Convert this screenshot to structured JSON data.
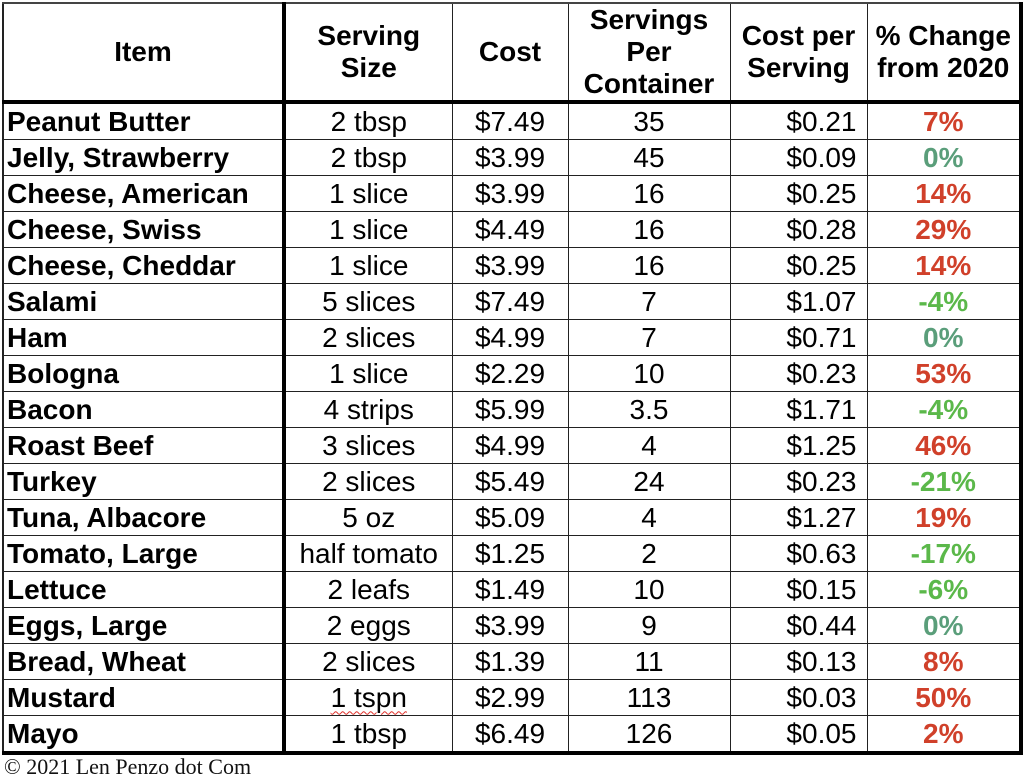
{
  "colors": {
    "increase": "#d0402a",
    "decrease": "#5bb84a",
    "no_change": "#5a9e7a"
  },
  "table": {
    "headers": [
      "Item",
      "Serving Size",
      "Cost",
      "Servings Per Container",
      "Cost per Serving",
      "% Change from 2020"
    ],
    "rows": [
      {
        "item": "Peanut Butter",
        "serving_size": "2 tbsp",
        "cost": "$7.49",
        "servings": "35",
        "cost_per_serving": "$0.21",
        "pct_change": "7%",
        "trend": "increase"
      },
      {
        "item": "Jelly, Strawberry",
        "serving_size": "2 tbsp",
        "cost": "$3.99",
        "servings": "45",
        "cost_per_serving": "$0.09",
        "pct_change": "0%",
        "trend": "no_change"
      },
      {
        "item": "Cheese, American",
        "serving_size": "1 slice",
        "cost": "$3.99",
        "servings": "16",
        "cost_per_serving": "$0.25",
        "pct_change": "14%",
        "trend": "increase"
      },
      {
        "item": "Cheese, Swiss",
        "serving_size": "1 slice",
        "cost": "$4.49",
        "servings": "16",
        "cost_per_serving": "$0.28",
        "pct_change": "29%",
        "trend": "increase"
      },
      {
        "item": "Cheese, Cheddar",
        "serving_size": "1 slice",
        "cost": "$3.99",
        "servings": "16",
        "cost_per_serving": "$0.25",
        "pct_change": "14%",
        "trend": "increase"
      },
      {
        "item": "Salami",
        "serving_size": "5 slices",
        "cost": "$7.49",
        "servings": "7",
        "cost_per_serving": "$1.07",
        "pct_change": "-4%",
        "trend": "decrease"
      },
      {
        "item": "Ham",
        "serving_size": "2 slices",
        "cost": "$4.99",
        "servings": "7",
        "cost_per_serving": "$0.71",
        "pct_change": "0%",
        "trend": "no_change"
      },
      {
        "item": "Bologna",
        "serving_size": "1 slice",
        "cost": "$2.29",
        "servings": "10",
        "cost_per_serving": "$0.23",
        "pct_change": "53%",
        "trend": "increase"
      },
      {
        "item": "Bacon",
        "serving_size": "4 strips",
        "cost": "$5.99",
        "servings": "3.5",
        "cost_per_serving": "$1.71",
        "pct_change": "-4%",
        "trend": "decrease"
      },
      {
        "item": "Roast Beef",
        "serving_size": "3 slices",
        "cost": "$4.99",
        "servings": "4",
        "cost_per_serving": "$1.25",
        "pct_change": "46%",
        "trend": "increase"
      },
      {
        "item": "Turkey",
        "serving_size": "2 slices",
        "cost": "$5.49",
        "servings": "24",
        "cost_per_serving": "$0.23",
        "pct_change": "-21%",
        "trend": "decrease"
      },
      {
        "item": "Tuna, Albacore",
        "serving_size": "5 oz",
        "cost": "$5.09",
        "servings": "4",
        "cost_per_serving": "$1.27",
        "pct_change": "19%",
        "trend": "increase"
      },
      {
        "item": "Tomato, Large",
        "serving_size": "half tomato",
        "cost": "$1.25",
        "servings": "2",
        "cost_per_serving": "$0.63",
        "pct_change": "-17%",
        "trend": "decrease"
      },
      {
        "item": "Lettuce",
        "serving_size": "2 leafs",
        "cost": "$1.49",
        "servings": "10",
        "cost_per_serving": "$0.15",
        "pct_change": "-6%",
        "trend": "decrease"
      },
      {
        "item": "Eggs, Large",
        "serving_size": "2 eggs",
        "cost": "$3.99",
        "servings": "9",
        "cost_per_serving": "$0.44",
        "pct_change": "0%",
        "trend": "no_change"
      },
      {
        "item": "Bread, Wheat",
        "serving_size": "2 slices",
        "cost": "$1.39",
        "servings": "11",
        "cost_per_serving": "$0.13",
        "pct_change": "8%",
        "trend": "increase"
      },
      {
        "item": "Mustard",
        "serving_size": "1 tspn",
        "cost": "$2.99",
        "servings": "113",
        "cost_per_serving": "$0.03",
        "pct_change": "50%",
        "trend": "increase",
        "spellcheck_underline": true
      },
      {
        "item": "Mayo",
        "serving_size": "1 tbsp",
        "cost": "$6.49",
        "servings": "126",
        "cost_per_serving": "$0.05",
        "pct_change": "2%",
        "trend": "increase"
      }
    ]
  },
  "caption": "© 2021 Len Penzo dot Com"
}
